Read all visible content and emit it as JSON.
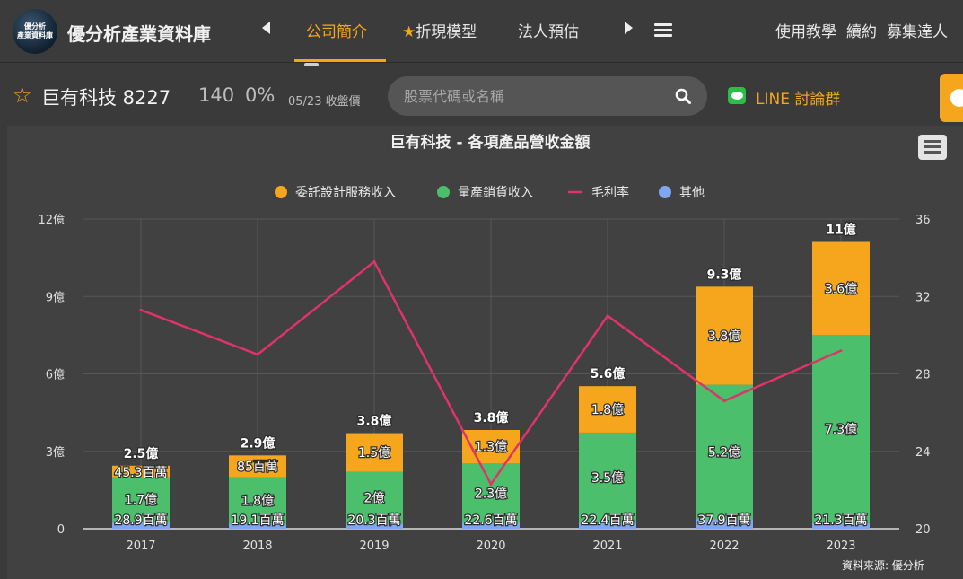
{
  "header": {
    "logo_lines": [
      "優分析",
      "產業資料庫"
    ],
    "brand": "優分析產業資料庫",
    "tabs": [
      {
        "label": "公司簡介",
        "active": true
      },
      {
        "label": "折現模型",
        "active": false
      },
      {
        "label": "法人預估",
        "active": false
      }
    ],
    "right_links": [
      "使用教學",
      "續約",
      "募集達人"
    ],
    "accent_color": "#f6a61c"
  },
  "stock": {
    "name": "巨有科技 8227",
    "price": "140",
    "change": "0%",
    "date": "05/23 收盤價"
  },
  "search": {
    "placeholder": "股票代碼或名稱"
  },
  "line_group": {
    "label": "LINE 討論群"
  },
  "source": "資料來源: 優分析",
  "chart_data": {
    "type": "bar",
    "title": "巨有科技 - 各項產品營收金額",
    "categories": [
      "2017",
      "2018",
      "2019",
      "2020",
      "2021",
      "2022",
      "2023"
    ],
    "legend_position": "top-center",
    "y_left": {
      "ticks": [
        "0",
        "3億",
        "6億",
        "9億",
        "12億"
      ],
      "ylim": [
        0,
        12
      ]
    },
    "y_right": {
      "ticks": [
        "20",
        "24",
        "28",
        "32",
        "36"
      ],
      "ylim": [
        20,
        36
      ]
    },
    "series": [
      {
        "name": "委託設計服務收入",
        "type": "bar",
        "stack": true,
        "color": "#f6a61c",
        "values": [
          0.453,
          0.85,
          1.5,
          1.3,
          1.8,
          3.8,
          3.6
        ],
        "labels": [
          "45.3百萬",
          "85百萬",
          "1.5億",
          "1.3億",
          "1.8億",
          "3.8億",
          "3.6億"
        ]
      },
      {
        "name": "量產銷貨收入",
        "type": "bar",
        "stack": true,
        "color": "#4bbf6b",
        "values": [
          1.7,
          1.8,
          2.0,
          2.3,
          3.5,
          5.2,
          7.3
        ],
        "labels": [
          "1.7億",
          "1.8億",
          "2億",
          "2.3億",
          "3.5億",
          "5.2億",
          "7.3億"
        ]
      },
      {
        "name": "毛利率",
        "type": "line",
        "axis": "right",
        "color": "#e0336a",
        "values": [
          31.3,
          29.0,
          33.8,
          22.3,
          31.0,
          26.6,
          29.2
        ]
      },
      {
        "name": "其他",
        "type": "bar",
        "stack": true,
        "color": "#7fa7f0",
        "values": [
          0.289,
          0.191,
          0.203,
          0.226,
          0.224,
          0.379,
          0.213
        ],
        "labels": [
          "28.9百萬",
          "19.1百萬",
          "20.3百萬",
          "22.6百萬",
          "22.4百萬",
          "37.9百萬",
          "21.3百萬"
        ]
      }
    ],
    "totals": [
      "2.5億",
      "2.9億",
      "3.8億",
      "3.8億",
      "5.6億",
      "9.3億",
      "11億"
    ],
    "grid": true
  }
}
